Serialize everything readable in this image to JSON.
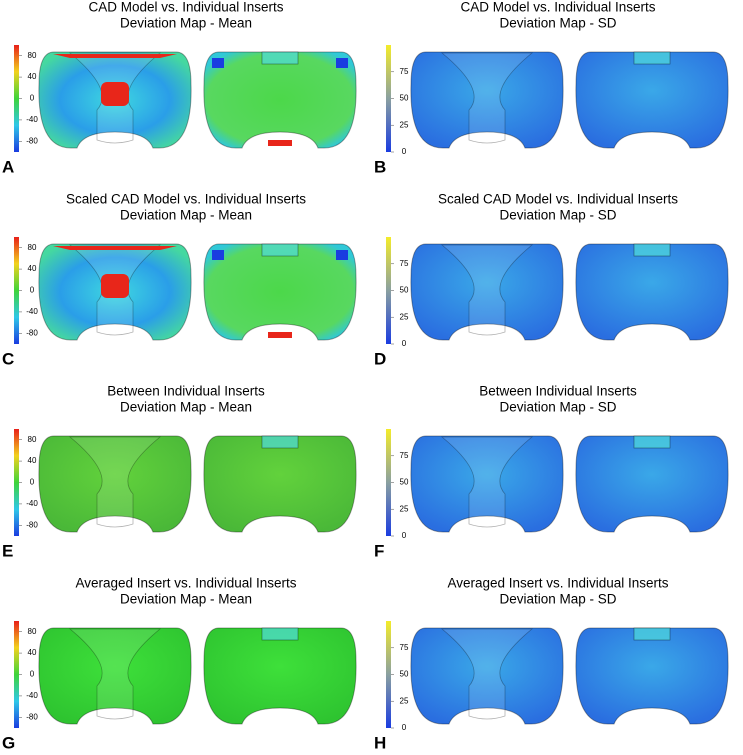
{
  "panels": [
    {
      "letter": "A",
      "title": [
        "CAD Model vs. Individual Inserts",
        "Deviation Map - Mean"
      ],
      "scale": {
        "range": [
          -100,
          100
        ],
        "ticks": [
          80,
          40,
          0,
          -40,
          -80
        ]
      }
    },
    {
      "letter": "B",
      "title": [
        "CAD Model vs. Individual Inserts",
        "Deviation Map - SD"
      ],
      "scale": {
        "range": [
          0,
          100
        ],
        "ticks": [
          75,
          50,
          25,
          0
        ]
      }
    },
    {
      "letter": "C",
      "title": [
        "Scaled CAD Model vs. Individual Inserts",
        "Deviation Map - Mean"
      ],
      "scale": {
        "range": [
          -100,
          100
        ],
        "ticks": [
          80,
          40,
          0,
          -40,
          -80
        ]
      }
    },
    {
      "letter": "D",
      "title": [
        "Scaled CAD Model vs. Individual Inserts",
        "Deviation Map - SD"
      ],
      "scale": {
        "range": [
          0,
          100
        ],
        "ticks": [
          75,
          50,
          25,
          0
        ]
      }
    },
    {
      "letter": "E",
      "title": [
        "Between Individual Inserts",
        "Deviation Map - Mean"
      ],
      "scale": {
        "range": [
          -100,
          100
        ],
        "ticks": [
          80,
          40,
          0,
          -40,
          -80
        ]
      }
    },
    {
      "letter": "F",
      "title": [
        "Between Individual Inserts",
        "Deviation Map - SD"
      ],
      "scale": {
        "range": [
          0,
          100
        ],
        "ticks": [
          75,
          50,
          25,
          0
        ]
      }
    },
    {
      "letter": "G",
      "title": [
        "Averaged Insert vs. Individual Inserts",
        "Deviation Map - Mean"
      ],
      "scale": {
        "range": [
          -100,
          100
        ],
        "ticks": [
          80,
          40,
          0,
          -40,
          -80
        ]
      }
    },
    {
      "letter": "H",
      "title": [
        "Averaged Insert vs. Individual Inserts",
        "Deviation Map - SD"
      ],
      "scale": {
        "range": [
          0,
          100
        ],
        "ticks": [
          75,
          50,
          25,
          0
        ]
      }
    }
  ]
}
